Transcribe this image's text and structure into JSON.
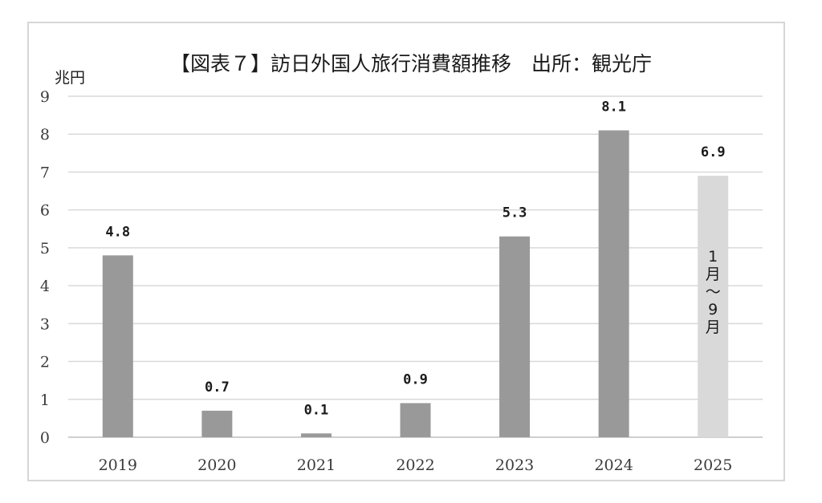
{
  "chart_data": {
    "type": "bar",
    "title": "【図表７】訪日外国人旅行消費額推移　出所：観光庁",
    "unit_label": "兆円",
    "categories": [
      "2019",
      "2020",
      "2021",
      "2022",
      "2023",
      "2024",
      "2025"
    ],
    "values": [
      4.8,
      0.7,
      0.1,
      0.9,
      5.3,
      8.1,
      6.9
    ],
    "data_labels": [
      "4.8",
      "0.7",
      "0.1",
      "0.9",
      "5.3",
      "8.1",
      "6.9"
    ],
    "ylim": [
      0,
      9
    ],
    "yticks": [
      "0",
      "1",
      "2",
      "3",
      "4",
      "5",
      "6",
      "7",
      "8",
      "9"
    ],
    "grid": true,
    "legend": "none",
    "annotation": {
      "category": "2025",
      "lines": [
        "1",
        "月",
        "〜",
        "9",
        "月"
      ]
    },
    "colors": {
      "bar": "#999999",
      "bar_highlight": "#d9d9d9",
      "grid": "#d9d9d9"
    }
  }
}
